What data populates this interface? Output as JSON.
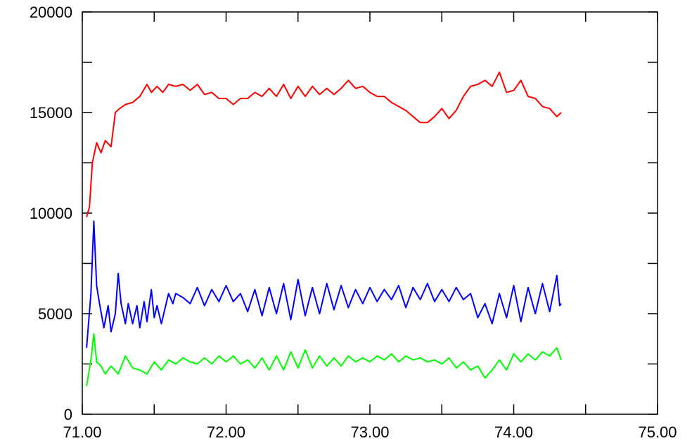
{
  "chart_data": {
    "type": "line",
    "title": "",
    "xlabel": "",
    "ylabel": "",
    "xlim": [
      71.0,
      75.0
    ],
    "ylim": [
      0,
      20000
    ],
    "grid": false,
    "legend": "none",
    "x_ticks": [
      "71.00",
      "72.00",
      "73.00",
      "74.00",
      "75.00"
    ],
    "y_ticks": [
      "0",
      "5000",
      "10000",
      "15000",
      "20000"
    ],
    "series": [
      {
        "color": "#ff0000",
        "x": [
          71.03,
          71.05,
          71.07,
          71.1,
          71.13,
          71.16,
          71.2,
          71.23,
          71.26,
          71.3,
          71.35,
          71.4,
          71.45,
          71.48,
          71.52,
          71.56,
          71.6,
          71.65,
          71.7,
          71.75,
          71.8,
          71.85,
          71.9,
          71.95,
          72.0,
          72.05,
          72.1,
          72.15,
          72.2,
          72.25,
          72.3,
          72.35,
          72.4,
          72.45,
          72.5,
          72.55,
          72.6,
          72.65,
          72.7,
          72.75,
          72.8,
          72.85,
          72.9,
          72.95,
          73.0,
          73.05,
          73.1,
          73.15,
          73.2,
          73.25,
          73.3,
          73.35,
          73.4,
          73.45,
          73.5,
          73.55,
          73.6,
          73.65,
          73.7,
          73.75,
          73.8,
          73.85,
          73.9,
          73.95,
          74.0,
          74.05,
          74.1,
          74.15,
          74.2,
          74.25,
          74.3,
          74.33
        ],
        "values": [
          9800,
          10300,
          12500,
          13500,
          13000,
          13600,
          13300,
          15000,
          15200,
          15400,
          15500,
          15800,
          16400,
          16000,
          16300,
          16000,
          16400,
          16300,
          16400,
          16100,
          16400,
          15900,
          16000,
          15700,
          15700,
          15400,
          15700,
          15700,
          16000,
          15800,
          16200,
          15800,
          16400,
          15700,
          16300,
          15800,
          16300,
          15900,
          16200,
          15900,
          16200,
          16600,
          16200,
          16300,
          16000,
          15800,
          15800,
          15500,
          15300,
          15100,
          14800,
          14500,
          14500,
          14800,
          15200,
          14700,
          15100,
          15800,
          16300,
          16400,
          16600,
          16300,
          17000,
          16000,
          16100,
          16600,
          15800,
          15700,
          15300,
          15200,
          14800,
          15000
        ]
      },
      {
        "color": "#0000ff",
        "x": [
          71.03,
          71.06,
          71.08,
          71.1,
          71.12,
          71.15,
          71.18,
          71.2,
          71.23,
          71.25,
          71.27,
          71.3,
          71.32,
          71.35,
          71.38,
          71.4,
          71.43,
          71.45,
          71.48,
          71.5,
          71.52,
          71.55,
          71.58,
          71.6,
          71.63,
          71.65,
          71.7,
          71.75,
          71.8,
          71.85,
          71.9,
          71.95,
          72.0,
          72.05,
          72.1,
          72.15,
          72.2,
          72.25,
          72.3,
          72.35,
          72.4,
          72.45,
          72.5,
          72.55,
          72.6,
          72.65,
          72.7,
          72.75,
          72.8,
          72.85,
          72.9,
          72.95,
          73.0,
          73.05,
          73.1,
          73.15,
          73.2,
          73.25,
          73.3,
          73.35,
          73.4,
          73.45,
          73.5,
          73.55,
          73.6,
          73.65,
          73.7,
          73.75,
          73.8,
          73.85,
          73.9,
          73.95,
          74.0,
          74.05,
          74.1,
          74.15,
          74.2,
          74.25,
          74.3,
          74.32,
          74.33
        ],
        "values": [
          3300,
          6000,
          9600,
          6400,
          5500,
          4300,
          5400,
          4100,
          5000,
          7000,
          5500,
          4500,
          5500,
          4500,
          5400,
          4300,
          5600,
          4600,
          6200,
          4800,
          5400,
          4500,
          5400,
          6000,
          5500,
          6000,
          5800,
          5500,
          6300,
          5400,
          6200,
          5600,
          6400,
          5600,
          6000,
          5100,
          6200,
          4900,
          6300,
          5000,
          6500,
          4700,
          6700,
          4900,
          6300,
          5000,
          6500,
          5200,
          6400,
          5300,
          6200,
          5500,
          6300,
          5600,
          6200,
          5700,
          6400,
          5300,
          6300,
          5700,
          6500,
          5600,
          6200,
          5600,
          6300,
          5700,
          6000,
          4800,
          5500,
          4500,
          6000,
          4800,
          6400,
          4600,
          6300,
          5000,
          6500,
          5100,
          6900,
          5400,
          5500
        ]
      },
      {
        "color": "#00ff00",
        "x": [
          71.03,
          71.06,
          71.08,
          71.1,
          71.13,
          71.16,
          71.2,
          71.25,
          71.3,
          71.35,
          71.4,
          71.45,
          71.5,
          71.55,
          71.6,
          71.65,
          71.7,
          71.75,
          71.8,
          71.85,
          71.9,
          71.95,
          72.0,
          72.05,
          72.1,
          72.15,
          72.2,
          72.25,
          72.3,
          72.35,
          72.4,
          72.45,
          72.5,
          72.55,
          72.6,
          72.65,
          72.7,
          72.75,
          72.8,
          72.85,
          72.9,
          72.95,
          73.0,
          73.05,
          73.1,
          73.15,
          73.2,
          73.25,
          73.3,
          73.35,
          73.4,
          73.45,
          73.5,
          73.55,
          73.6,
          73.65,
          73.7,
          73.75,
          73.8,
          73.85,
          73.9,
          73.95,
          74.0,
          74.05,
          74.1,
          74.15,
          74.2,
          74.25,
          74.3,
          74.33
        ],
        "values": [
          1400,
          2700,
          4000,
          2600,
          2400,
          2000,
          2400,
          2000,
          2900,
          2300,
          2200,
          2000,
          2600,
          2200,
          2700,
          2500,
          2800,
          2600,
          2500,
          2800,
          2500,
          2900,
          2600,
          2900,
          2500,
          2700,
          2300,
          2800,
          2200,
          2900,
          2200,
          3100,
          2300,
          3200,
          2300,
          2900,
          2400,
          2800,
          2400,
          2900,
          2600,
          2800,
          2600,
          2900,
          2700,
          3000,
          2600,
          2900,
          2700,
          2800,
          2600,
          2700,
          2500,
          2800,
          2300,
          2600,
          2200,
          2400,
          1800,
          2200,
          2700,
          2200,
          3000,
          2600,
          3000,
          2700,
          3100,
          2900,
          3300,
          2700
        ]
      }
    ]
  }
}
